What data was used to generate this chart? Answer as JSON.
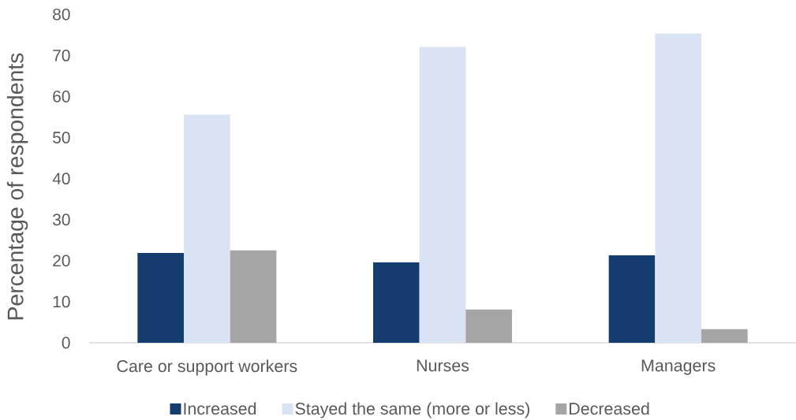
{
  "chart_data": {
    "type": "bar",
    "ylabel": "Percentage of respondents",
    "categories": [
      "Care or support workers",
      "Nurses",
      "Managers"
    ],
    "series": [
      {
        "name": "Increased",
        "color": "#143c6e",
        "values": [
          21.9,
          19.6,
          21.3
        ]
      },
      {
        "name": "Stayed the same (more or less)",
        "color": "#dae3f3",
        "values": [
          55.6,
          72.1,
          75.3
        ]
      },
      {
        "name": "Decreased",
        "color": "#a5a5a5",
        "values": [
          22.5,
          8.1,
          3.3
        ]
      }
    ],
    "ylim": [
      0,
      80
    ],
    "yticks": [
      0,
      10,
      20,
      30,
      40,
      50,
      60,
      70,
      80
    ],
    "grid": false,
    "legend": "bottom"
  }
}
